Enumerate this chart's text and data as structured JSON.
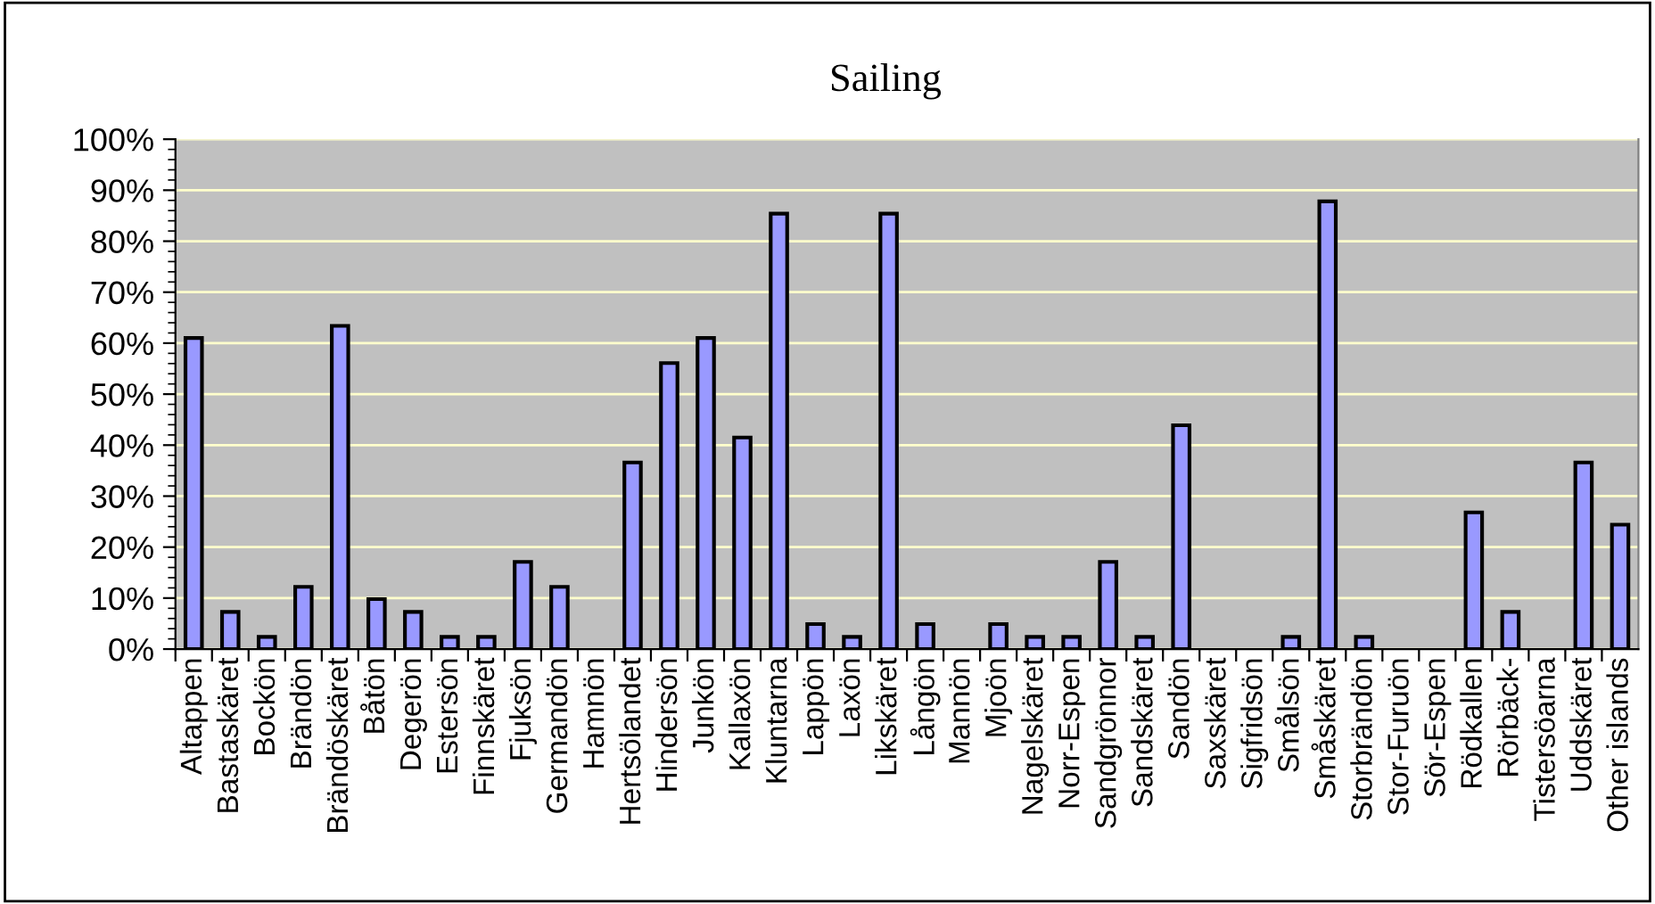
{
  "chart_data": {
    "type": "bar",
    "title": "Sailing",
    "categories": [
      "Altappen",
      "Bastaskäret",
      "Bockön",
      "Brändön",
      "Brändöskäret",
      "Båtön",
      "Degerön",
      "Estersön",
      "Finnskäret",
      "Fjuksön",
      "Germandön",
      "Hamnön",
      "Hertsölandet",
      "Hindersön",
      "Junkön",
      "Kallaxön",
      "Kluntarna",
      "Lappön",
      "Laxön",
      "Likskäret",
      "Långön",
      "Mannön",
      "Mjoön",
      "Nagelskäret",
      "Norr-Espen",
      "Sandgrönnor",
      "Sandskäret",
      "Sandön",
      "Saxskäret",
      "Sigfridsön",
      "Smålsön",
      "Småskäret",
      "Storbrändön",
      "Stor-Furuön",
      "Sör-Espen",
      "Rödkallen",
      "Rörbäck-",
      "Tistersöarna",
      "Uddskäret",
      "Other islands"
    ],
    "values": [
      61.0,
      7.3,
      2.4,
      12.2,
      63.4,
      9.8,
      7.3,
      2.4,
      2.4,
      17.1,
      12.2,
      0,
      36.6,
      56.1,
      61.0,
      41.5,
      85.4,
      4.9,
      2.4,
      85.4,
      4.9,
      0,
      4.9,
      2.4,
      2.4,
      17.1,
      2.4,
      43.9,
      0,
      0,
      2.4,
      87.8,
      2.4,
      0,
      0,
      26.8,
      7.3,
      0,
      36.6,
      24.4
    ],
    "color": "#9999ff",
    "ylim": [
      0,
      100
    ],
    "yticks": [
      {
        "value": 0,
        "label": "0%"
      },
      {
        "value": 10,
        "label": "10%"
      },
      {
        "value": 20,
        "label": "20%"
      },
      {
        "value": 30,
        "label": "30%"
      },
      {
        "value": 40,
        "label": "40%"
      },
      {
        "value": 50,
        "label": "50%"
      },
      {
        "value": 60,
        "label": "60%"
      },
      {
        "value": 70,
        "label": "70%"
      },
      {
        "value": 80,
        "label": "80%"
      },
      {
        "value": 90,
        "label": "90%"
      },
      {
        "value": 100,
        "label": "100%"
      }
    ],
    "grid": "y",
    "legend": false
  }
}
